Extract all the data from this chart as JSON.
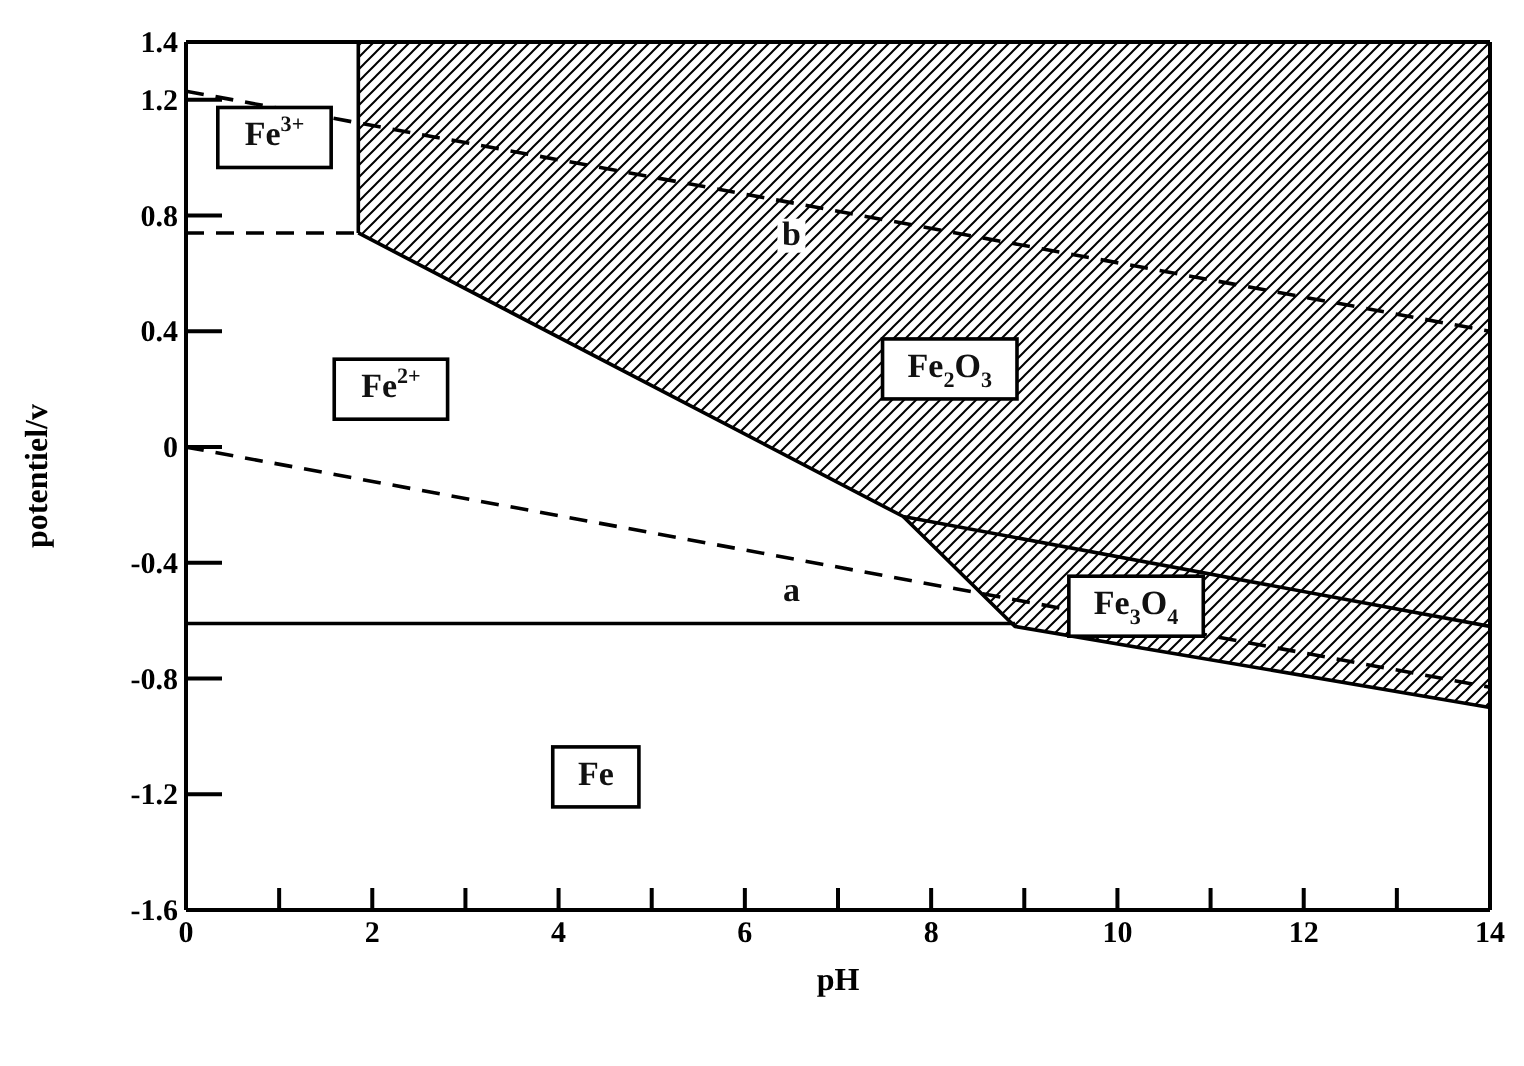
{
  "chart_data": {
    "type": "line",
    "xlabel": "pH",
    "ylabel": "potentiel/v",
    "xlim": [
      0,
      14
    ],
    "ylim": [
      -1.6,
      1.4
    ],
    "xticks": [
      0,
      {
        "value": 1,
        "label": null
      },
      2,
      {
        "value": 3,
        "label": null
      },
      4,
      {
        "value": 5,
        "label": null
      },
      6,
      {
        "value": 7,
        "label": null
      },
      8,
      {
        "value": 9,
        "label": null
      },
      10,
      {
        "value": 11,
        "label": null
      },
      12,
      {
        "value": 13,
        "label": null
      },
      14
    ],
    "yticks": [
      1.4,
      1.2,
      0.8,
      0.4,
      0,
      -0.4,
      -0.8,
      -1.2,
      -1.6
    ],
    "grid": false,
    "legend": false,
    "series": [
      {
        "color": "#000000",
        "x": [
          1.85,
          7.7,
          14
        ],
        "values": [
          0.74,
          -0.24,
          -0.62
        ],
        "lower": [
          0.74,
          -0.24,
          -0.62
        ],
        "upper": [
          1.4,
          1.4,
          1.4
        ]
      },
      {
        "color": "#000000",
        "x": [
          7.7,
          8.9,
          14
        ],
        "values": [
          -0.24,
          -0.62,
          -0.9
        ],
        "lower": [
          -0.24,
          -0.62,
          -0.9
        ],
        "upper": [
          -0.24,
          -0.31,
          -0.62
        ]
      },
      {
        "color": "#000000",
        "x": [
          1.85,
          1.85
        ],
        "values": [
          0.74,
          1.4
        ]
      },
      {
        "color": "#000000",
        "line_style": "dashed",
        "x": [
          0,
          1.85
        ],
        "values": [
          0.74,
          0.74
        ]
      },
      {
        "color": "#000000",
        "x": [
          0,
          8.9
        ],
        "values": [
          -0.61,
          -0.61
        ]
      },
      {
        "name": "a",
        "color": "#000000",
        "line_style": "dashed",
        "x": [
          0,
          14
        ],
        "values": [
          0,
          -0.83
        ]
      },
      {
        "name": "b",
        "color": "#000000",
        "line_style": "dashed",
        "x": [
          0,
          14
        ],
        "values": [
          1.23,
          0.4
        ]
      }
    ],
    "annotations": [
      "Fe$^{3+}$",
      "Fe$^{2+}$",
      "Fe$_{2}$O$_{3}$",
      "Fe$_{3}$O$_{4}$",
      "Fe"
    ]
  }
}
